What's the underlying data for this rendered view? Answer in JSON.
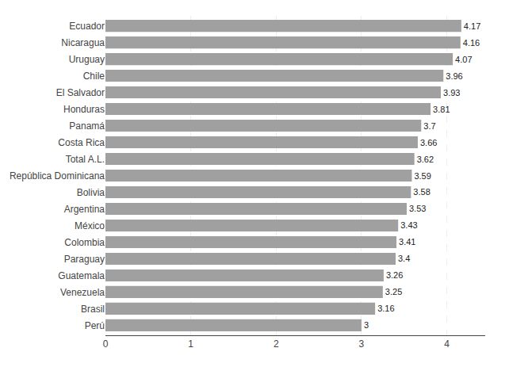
{
  "chart_data": {
    "type": "bar",
    "orientation": "horizontal",
    "categories": [
      "Perú",
      "Brasil",
      "Venezuela",
      "Guatemala",
      "Paraguay",
      "Colombia",
      "México",
      "Argentina",
      "Bolivia",
      "República Dominicana",
      "Total A.L.",
      "Costa Rica",
      "Panamá",
      "Honduras",
      "El Salvador",
      "Chile",
      "Uruguay",
      "Nicaragua",
      "Ecuador"
    ],
    "values": [
      3,
      3.16,
      3.25,
      3.26,
      3.4,
      3.41,
      3.43,
      3.53,
      3.58,
      3.59,
      3.62,
      3.66,
      3.7,
      3.81,
      3.93,
      3.96,
      4.07,
      4.16,
      4.17
    ],
    "color": "#a0a0a0",
    "xlim": [
      0,
      4.45
    ],
    "xticks": [
      0,
      1,
      2,
      3,
      4
    ],
    "grid": true,
    "data_labels": true
  }
}
